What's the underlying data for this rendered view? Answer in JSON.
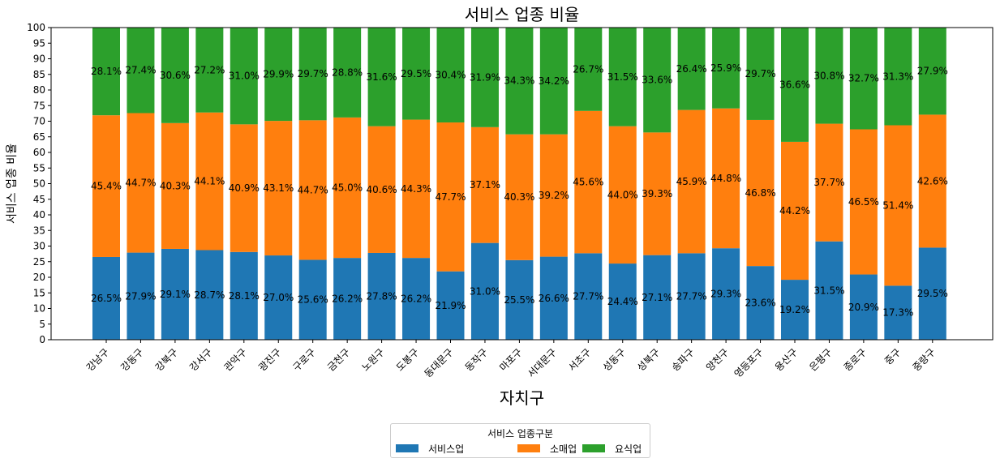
{
  "chart_data": {
    "type": "bar",
    "stacked": true,
    "title": "서비스 업종 비율",
    "xlabel": "자치구",
    "ylabel": "서비스 업종 비율",
    "ylim": [
      0,
      100
    ],
    "yticks": [
      0,
      5,
      10,
      15,
      20,
      25,
      30,
      35,
      40,
      45,
      50,
      55,
      60,
      65,
      70,
      75,
      80,
      85,
      90,
      95,
      100
    ],
    "categories": [
      "강남구",
      "강동구",
      "강북구",
      "강서구",
      "관악구",
      "광진구",
      "구로구",
      "금천구",
      "노원구",
      "도봉구",
      "동대문구",
      "동작구",
      "마포구",
      "서대문구",
      "서초구",
      "성동구",
      "성북구",
      "송파구",
      "양천구",
      "영등포구",
      "용산구",
      "은평구",
      "종로구",
      "중구",
      "중랑구"
    ],
    "series": [
      {
        "name": "서비스업",
        "color": "#1f77b4",
        "values": [
          26.5,
          27.9,
          29.1,
          28.7,
          28.1,
          27.0,
          25.6,
          26.2,
          27.8,
          26.2,
          21.9,
          31.0,
          25.5,
          26.6,
          27.7,
          24.4,
          27.1,
          27.7,
          29.3,
          23.6,
          19.2,
          31.5,
          20.9,
          17.3,
          29.5
        ],
        "labels": [
          "26.5%",
          "27.9%",
          "29.1%",
          "28.7%",
          "28.1%",
          "27.0%",
          "25.6%",
          "26.2%",
          "27.8%",
          "26.2%",
          "21.9%",
          "31.0%",
          "25.5%",
          "26.6%",
          "27.7%",
          "24.4%",
          "27.1%",
          "27.7%",
          "29.3%",
          "23.6%",
          "19.2%",
          "31.5%",
          "20.9%",
          "17.3%",
          "29.5%"
        ]
      },
      {
        "name": "소매업",
        "color": "#ff7f0e",
        "values": [
          45.4,
          44.7,
          40.3,
          44.1,
          40.9,
          43.1,
          44.7,
          45.0,
          40.6,
          44.3,
          47.7,
          37.1,
          40.3,
          39.2,
          45.6,
          44.0,
          39.3,
          45.9,
          44.8,
          46.8,
          44.2,
          37.7,
          46.5,
          51.4,
          42.6
        ],
        "labels": [
          "45.4%",
          "44.7%",
          "40.3%",
          "44.1%",
          "40.9%",
          "43.1%",
          "44.7%",
          "45.0%",
          "40.6%",
          "44.3%",
          "47.7%",
          "37.1%",
          "40.3%",
          "39.2%",
          "45.6%",
          "44.0%",
          "39.3%",
          "45.9%",
          "44.8%",
          "46.8%",
          "44.2%",
          "37.7%",
          "46.5%",
          "51.4%",
          "42.6%"
        ]
      },
      {
        "name": "요식업",
        "color": "#2ca02c",
        "values": [
          28.1,
          27.4,
          30.6,
          27.2,
          31.0,
          29.9,
          29.7,
          28.8,
          31.6,
          29.5,
          30.4,
          31.9,
          34.3,
          34.2,
          26.7,
          31.5,
          33.6,
          26.4,
          25.9,
          29.7,
          36.6,
          30.8,
          32.7,
          31.3,
          27.9
        ],
        "labels": [
          "28.1%",
          "27.4%",
          "30.6%",
          "27.2%",
          "31.0%",
          "29.9%",
          "29.7%",
          "28.8%",
          "31.6%",
          "29.5%",
          "30.4%",
          "31.9%",
          "34.3%",
          "34.2%",
          "26.7%",
          "31.5%",
          "33.6%",
          "26.4%",
          "25.9%",
          "29.7%",
          "36.6%",
          "30.8%",
          "32.7%",
          "31.3%",
          "27.9%"
        ]
      }
    ],
    "legend_title": "서비스 업종구분",
    "legend_position": "bottom-center",
    "grid": false
  }
}
